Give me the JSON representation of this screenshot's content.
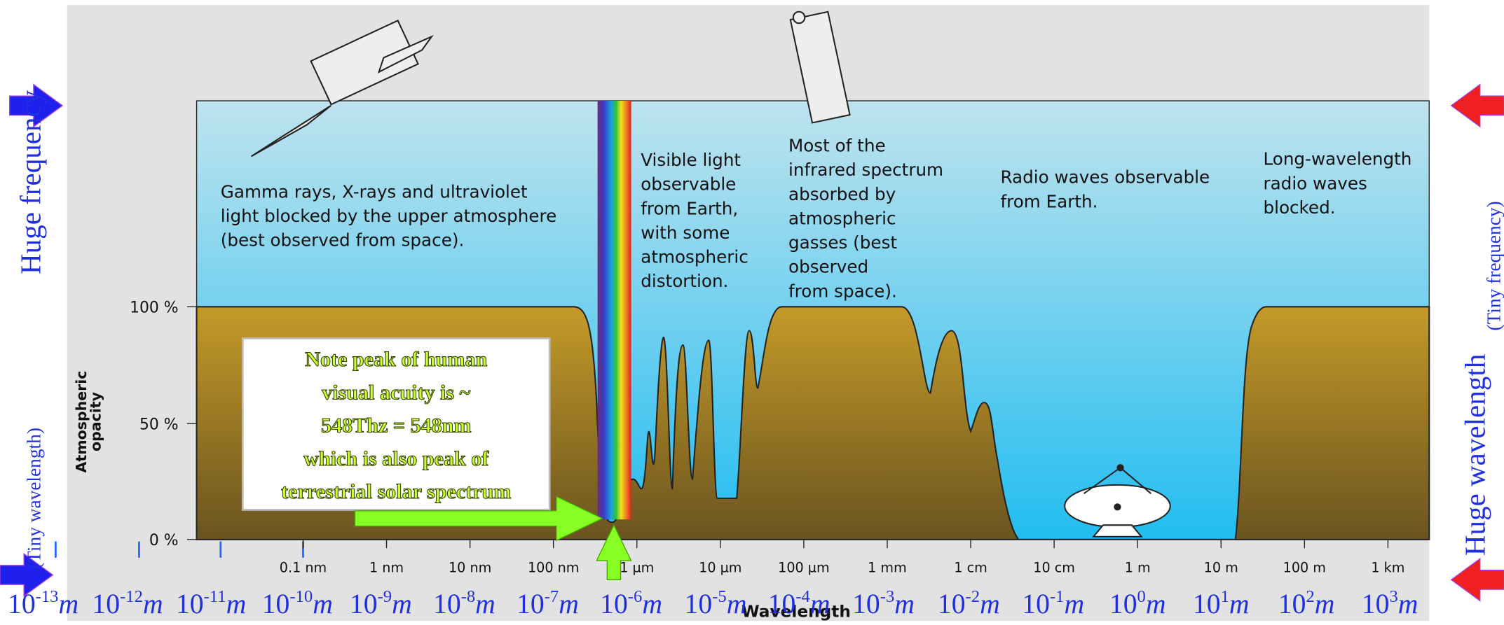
{
  "diagram": {
    "y_axis": {
      "label_lines": [
        "Atmospheric",
        "opacity"
      ],
      "ticks": [
        "100 %",
        "50 %",
        "0 %"
      ]
    },
    "x_axis": {
      "label": "Wavelength",
      "ticks": [
        "0.1 nm",
        "1 nm",
        "10 nm",
        "100 nm",
        "1 µm",
        "10 µm",
        "100 µm",
        "1 mm",
        "1 cm",
        "10 cm",
        "1 m",
        "10 m",
        "100 m",
        "1 km"
      ]
    },
    "powers": [
      {
        "base": "10",
        "exponent": "-13",
        "unit": "m"
      },
      {
        "base": "10",
        "exponent": "-12",
        "unit": "m"
      },
      {
        "base": "10",
        "exponent": "-11",
        "unit": "m"
      },
      {
        "base": "10",
        "exponent": "-10",
        "unit": "m"
      },
      {
        "base": "10",
        "exponent": "-9",
        "unit": "m"
      },
      {
        "base": "10",
        "exponent": "-8",
        "unit": "m"
      },
      {
        "base": "10",
        "exponent": "-7",
        "unit": "m"
      },
      {
        "base": "10",
        "exponent": "-6",
        "unit": "m"
      },
      {
        "base": "10",
        "exponent": "-5",
        "unit": "m"
      },
      {
        "base": "10",
        "exponent": "-4",
        "unit": "m"
      },
      {
        "base": "10",
        "exponent": "-3",
        "unit": "m"
      },
      {
        "base": "10",
        "exponent": "-2",
        "unit": "m"
      },
      {
        "base": "10",
        "exponent": "-1",
        "unit": "m"
      },
      {
        "base": "10",
        "exponent": "0",
        "unit": "m"
      },
      {
        "base": "10",
        "exponent": "1",
        "unit": "m"
      },
      {
        "base": "10",
        "exponent": "2",
        "unit": "m"
      },
      {
        "base": "10",
        "exponent": "3",
        "unit": "m"
      }
    ],
    "annotations": [
      {
        "lines": [
          "Gamma rays, X-rays and ultraviolet",
          "light blocked by the upper atmosphere",
          "(best observed from space)."
        ]
      },
      {
        "lines": [
          "Visible light",
          "observable",
          "from Earth,",
          "with some",
          "atmospheric",
          "distortion."
        ]
      },
      {
        "lines": [
          "Most of the",
          "infrared spectrum",
          "absorbed by",
          "atmospheric",
          "gasses (best",
          "observed",
          "from space)."
        ]
      },
      {
        "lines": [
          "Radio waves observable",
          "from Earth."
        ]
      },
      {
        "lines": [
          "Long-wavelength",
          "radio waves",
          "blocked."
        ]
      }
    ],
    "note": {
      "lines": [
        "Note peak of human",
        "visual acuity is ~",
        "548Thz = 548nm",
        "which is also peak of",
        "terrestrial solar spectrum"
      ]
    },
    "left_side": {
      "small": "(Tiny wavelength)",
      "large": "Huge frequency"
    },
    "right_side": {
      "large": "Huge wavelength",
      "small": "(Tiny frequency)"
    }
  }
}
